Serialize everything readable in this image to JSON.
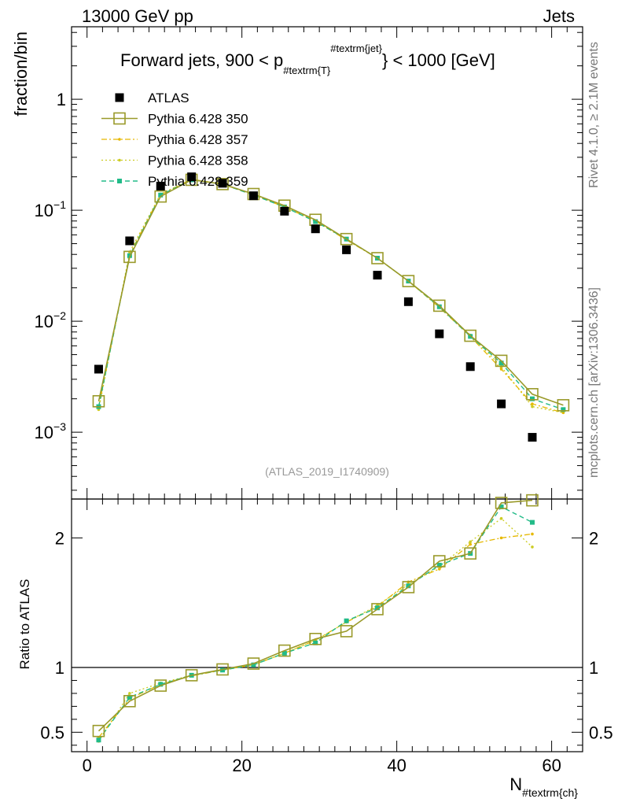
{
  "header": {
    "left": "13000 GeV pp",
    "right": "Jets",
    "title": "Forward jets, 900 < p",
    "title_sub": "#textrm{T}",
    "title_sup": "#textrm{jet}",
    "title_end": "} < 1000 [GeV]"
  },
  "side": {
    "rivet": "Rivet 4.1.0, ≥ 2.1M events",
    "mcplots": "mcplots.cern.ch [arXiv:1306.3436]"
  },
  "analysis_id": "(ATLAS_2019_I1740909)",
  "colors": {
    "data": "#000000",
    "p350": "#9a9a2a",
    "p357": "#e6b800",
    "p358": "#cccc22",
    "p359": "#22bb88",
    "unity": "#000000"
  },
  "chart_data": [
    {
      "type": "scatter",
      "panel": "main",
      "ylabel": "fraction/bin",
      "yscale": "log",
      "ylim": [
        0.00025,
        4.5
      ],
      "xlim": [
        -2,
        64
      ],
      "yticks": [
        {
          "v": 0.001,
          "base": "10",
          "exp": "−3"
        },
        {
          "v": 0.01,
          "base": "10",
          "exp": "−2"
        },
        {
          "v": 0.1,
          "base": "10",
          "exp": "−1"
        },
        {
          "v": 1,
          "base": "1",
          "exp": ""
        }
      ],
      "x": [
        1.5,
        5.5,
        9.5,
        13.5,
        17.5,
        21.5,
        25.5,
        29.5,
        33.5,
        37.5,
        41.5,
        45.5,
        49.5,
        53.5,
        57.5,
        61.5
      ],
      "series": [
        {
          "key": "atlas",
          "name": "ATLAS",
          "style": "data",
          "values": [
            0.0037,
            0.053,
            0.165,
            0.2,
            0.175,
            0.135,
            0.098,
            0.068,
            0.044,
            0.026,
            0.015,
            0.0077,
            0.0039,
            0.0018,
            0.0009,
            null
          ]
        },
        {
          "key": "p350",
          "name": "Pythia 6.428 350",
          "style": "solid-square",
          "values": [
            0.0019,
            0.038,
            0.133,
            0.188,
            0.172,
            0.14,
            0.11,
            0.082,
            0.055,
            0.037,
            0.023,
            0.0138,
            0.0074,
            0.0044,
            0.0022,
            0.00175
          ]
        },
        {
          "key": "p357",
          "name": "Pythia 6.428 357",
          "style": "dashdot",
          "values": [
            0.0017,
            0.04,
            0.138,
            0.19,
            0.172,
            0.138,
            0.107,
            0.08,
            0.054,
            0.037,
            0.023,
            0.0133,
            0.0073,
            0.0037,
            0.0018,
            0.0015
          ]
        },
        {
          "key": "p358",
          "name": "Pythia 6.428 358",
          "style": "dotted",
          "values": [
            0.0016,
            0.042,
            0.14,
            0.19,
            0.172,
            0.138,
            0.107,
            0.08,
            0.055,
            0.037,
            0.023,
            0.0135,
            0.0075,
            0.0039,
            0.0017,
            0.0015
          ]
        },
        {
          "key": "p359",
          "name": "Pythia 6.428 359",
          "style": "dashed",
          "values": [
            0.0017,
            0.039,
            0.137,
            0.188,
            0.172,
            0.137,
            0.107,
            0.079,
            0.055,
            0.037,
            0.023,
            0.0135,
            0.0073,
            0.0042,
            0.002,
            0.0016
          ]
        }
      ]
    },
    {
      "type": "line",
      "panel": "ratio",
      "ylabel": "Ratio to ATLAS",
      "xlabel": "N",
      "xlabel_sub": "#textrm{ch}",
      "ylim": [
        0.35,
        2.3
      ],
      "xlim": [
        -2,
        64
      ],
      "yticks": [
        0.5,
        1,
        2
      ],
      "xticks": [
        0,
        20,
        40,
        60
      ],
      "x": [
        1.5,
        5.5,
        9.5,
        13.5,
        17.5,
        21.5,
        25.5,
        29.5,
        33.5,
        37.5,
        41.5,
        45.5,
        49.5,
        53.5,
        57.5,
        61.5
      ],
      "series": [
        {
          "key": "p350",
          "name": "Pythia 6.428 350",
          "values": [
            0.51,
            0.74,
            0.86,
            0.94,
            0.985,
            1.03,
            1.13,
            1.22,
            1.28,
            1.45,
            1.62,
            1.82,
            1.88,
            2.27,
            2.29,
            null
          ]
        },
        {
          "key": "p357",
          "name": "Pythia 6.428 357",
          "values": [
            0.46,
            0.76,
            0.87,
            0.935,
            0.98,
            1.02,
            1.11,
            1.21,
            1.35,
            1.47,
            1.66,
            1.76,
            1.95,
            2.0,
            2.03,
            null
          ]
        },
        {
          "key": "p358",
          "name": "Pythia 6.428 358",
          "values": [
            0.43,
            0.8,
            0.88,
            0.94,
            0.98,
            1.02,
            1.11,
            1.21,
            1.35,
            1.48,
            1.64,
            1.78,
            1.97,
            2.15,
            1.93,
            null
          ]
        },
        {
          "key": "p359",
          "name": "Pythia 6.428 359",
          "values": [
            0.44,
            0.77,
            0.87,
            0.94,
            0.98,
            1.02,
            1.11,
            1.19,
            1.36,
            1.46,
            1.63,
            1.79,
            1.88,
            2.24,
            2.12,
            null
          ]
        }
      ]
    }
  ]
}
